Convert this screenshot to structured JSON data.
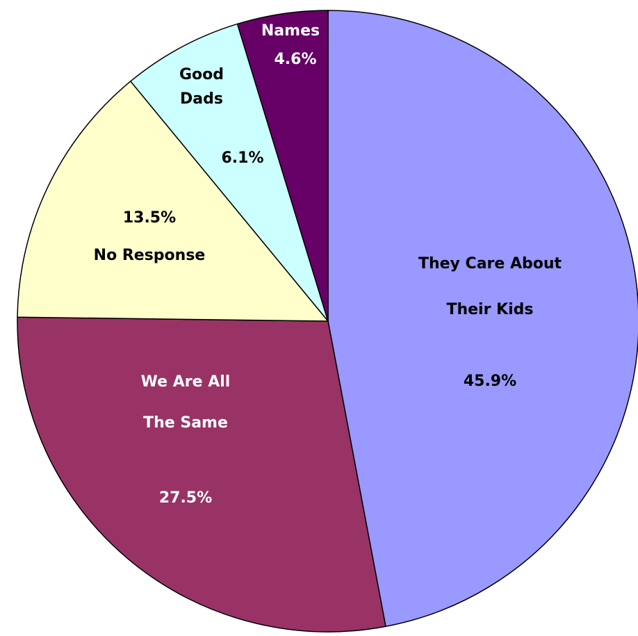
{
  "chart_data": {
    "type": "pie",
    "slices": [
      {
        "label_lines": [
          "They Care About",
          "Their Kids"
        ],
        "value": 45.9,
        "value_label": "45.9%",
        "color": "#9999FF",
        "text_color": "#000000"
      },
      {
        "label_lines": [
          "We Are All",
          "The Same"
        ],
        "value": 27.5,
        "value_label": "27.5%",
        "color": "#993366",
        "text_color": "#FFFFFF"
      },
      {
        "label_lines": [
          "No Response"
        ],
        "value": 13.5,
        "value_label": "13.5%",
        "color": "#FFFFCC",
        "text_color": "#000000"
      },
      {
        "label_lines": [
          "Good",
          "Dads"
        ],
        "value": 6.1,
        "value_label": "6.1%",
        "color": "#CCFFFF",
        "text_color": "#000000"
      },
      {
        "label_lines": [
          "Names"
        ],
        "value": 4.6,
        "value_label": "4.6%",
        "color": "#660066",
        "text_color": "#FFFFFF"
      }
    ],
    "start": "12 o'clock",
    "direction": "clockwise",
    "legend": "none"
  }
}
